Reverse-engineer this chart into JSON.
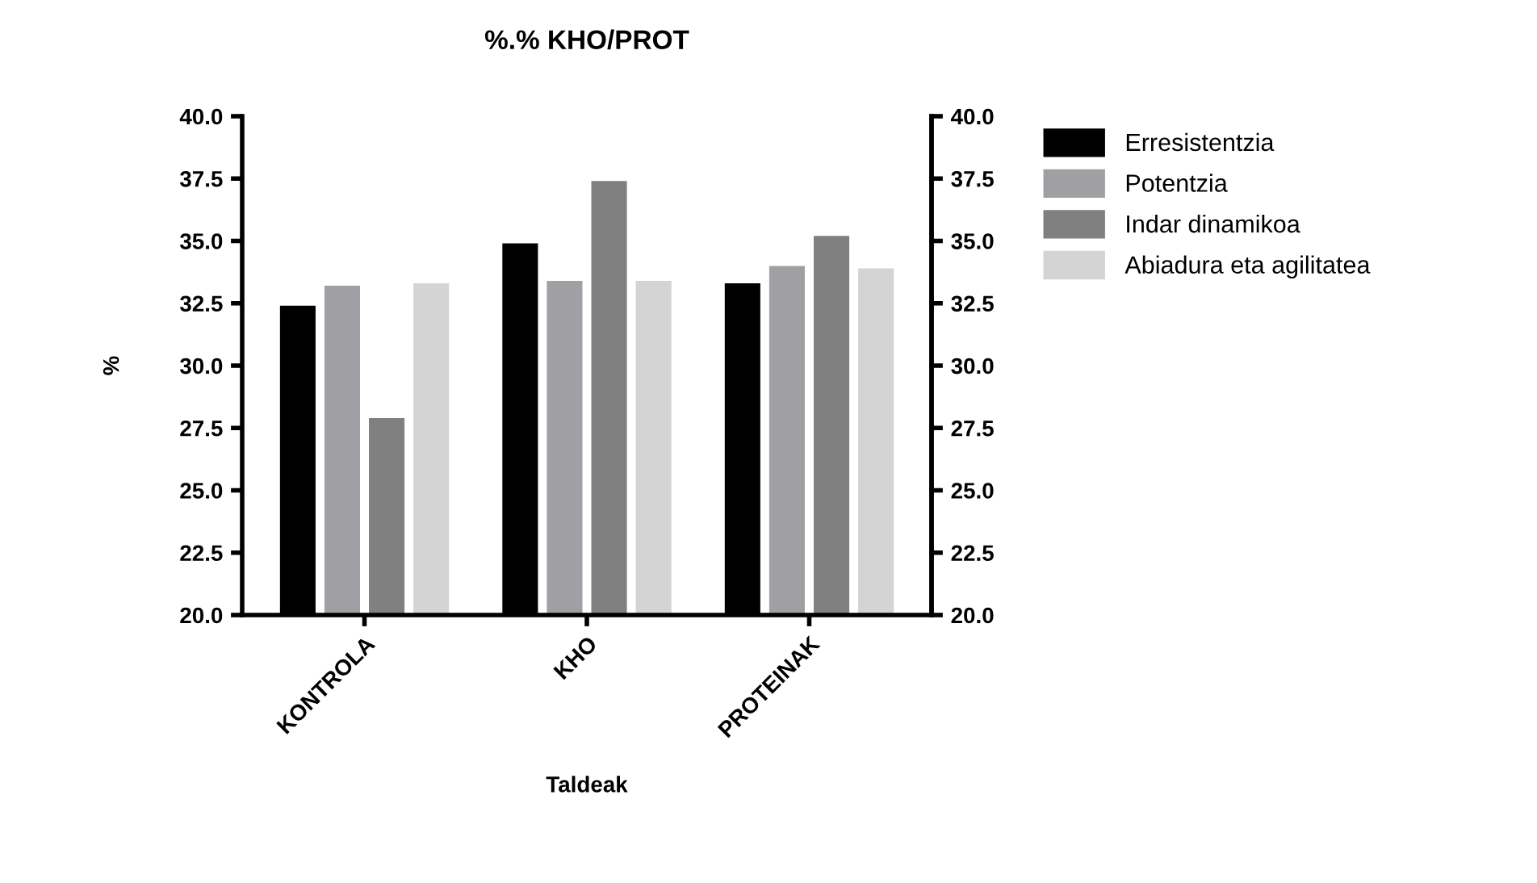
{
  "chart_data": {
    "type": "bar",
    "title": "%.% KHO/PROT",
    "xlabel": "Taldeak",
    "ylabel": "%",
    "categories": [
      "KONTROLA",
      "KHO",
      "PROTEINAK"
    ],
    "series": [
      {
        "name": "Erresistentzia",
        "color": "#000000",
        "values": [
          32.4,
          34.9,
          33.3
        ]
      },
      {
        "name": "Potentzia",
        "color": "#a0a0a4",
        "values": [
          33.2,
          33.4,
          34.0
        ]
      },
      {
        "name": "Indar dinamikoa",
        "color": "#808080",
        "values": [
          27.9,
          37.4,
          35.2
        ]
      },
      {
        "name": "Abiadura eta agilitatea",
        "color": "#d4d4d4",
        "values": [
          33.3,
          33.4,
          33.9
        ]
      }
    ],
    "ylim": [
      20,
      40
    ],
    "yticks": [
      {
        "value": 20,
        "label": "20.0"
      },
      {
        "value": 22.5,
        "label": "22.5"
      },
      {
        "value": 25,
        "label": "25.0"
      },
      {
        "value": 27.5,
        "label": "27.5"
      },
      {
        "value": 30,
        "label": "30.0"
      },
      {
        "value": 32.5,
        "label": "32.5"
      },
      {
        "value": 35,
        "label": "35.0"
      },
      {
        "value": 37.5,
        "label": "37.5"
      },
      {
        "value": 40,
        "label": "40.0"
      }
    ],
    "y2lim": [
      20,
      40
    ],
    "y2ticks": [
      {
        "value": 20,
        "label": "20.0"
      },
      {
        "value": 22.5,
        "label": "22.5"
      },
      {
        "value": 25,
        "label": "25.0"
      },
      {
        "value": 27.5,
        "label": "27.5"
      },
      {
        "value": 30,
        "label": "30.0"
      },
      {
        "value": 32.5,
        "label": "32.5"
      },
      {
        "value": 35,
        "label": "35.0"
      },
      {
        "value": 37.5,
        "label": "37.5"
      },
      {
        "value": 40,
        "label": "40.0"
      }
    ],
    "legend": "right",
    "grid": false
  }
}
